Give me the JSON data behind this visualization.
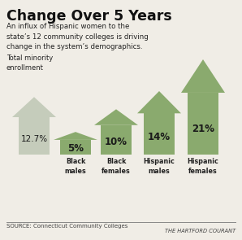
{
  "title": "Change Over 5 Years",
  "subtitle": "An influx of Hispanic women to the\nstate’s 12 community colleges is driving\nchange in the system’s demographics.",
  "ylabel": "Total minority\nenrollment",
  "source": "SOURCE: Connecticut Community Colleges",
  "credit": "THE HARTFORD COURANT",
  "categories": [
    "",
    "Black\nmales",
    "Black\nfemales",
    "Hispanic\nmales",
    "Hispanic\nfemales"
  ],
  "values": [
    12.7,
    5,
    10,
    14,
    21
  ],
  "labels": [
    "12.7%",
    "5%",
    "10%",
    "14%",
    "21%"
  ],
  "arrow_color_first": "#c5ccbb",
  "arrow_color_rest": "#8aaa6e",
  "bg_color": "#f0ede6",
  "title_color": "#111111",
  "text_color": "#222222",
  "source_color": "#444444"
}
